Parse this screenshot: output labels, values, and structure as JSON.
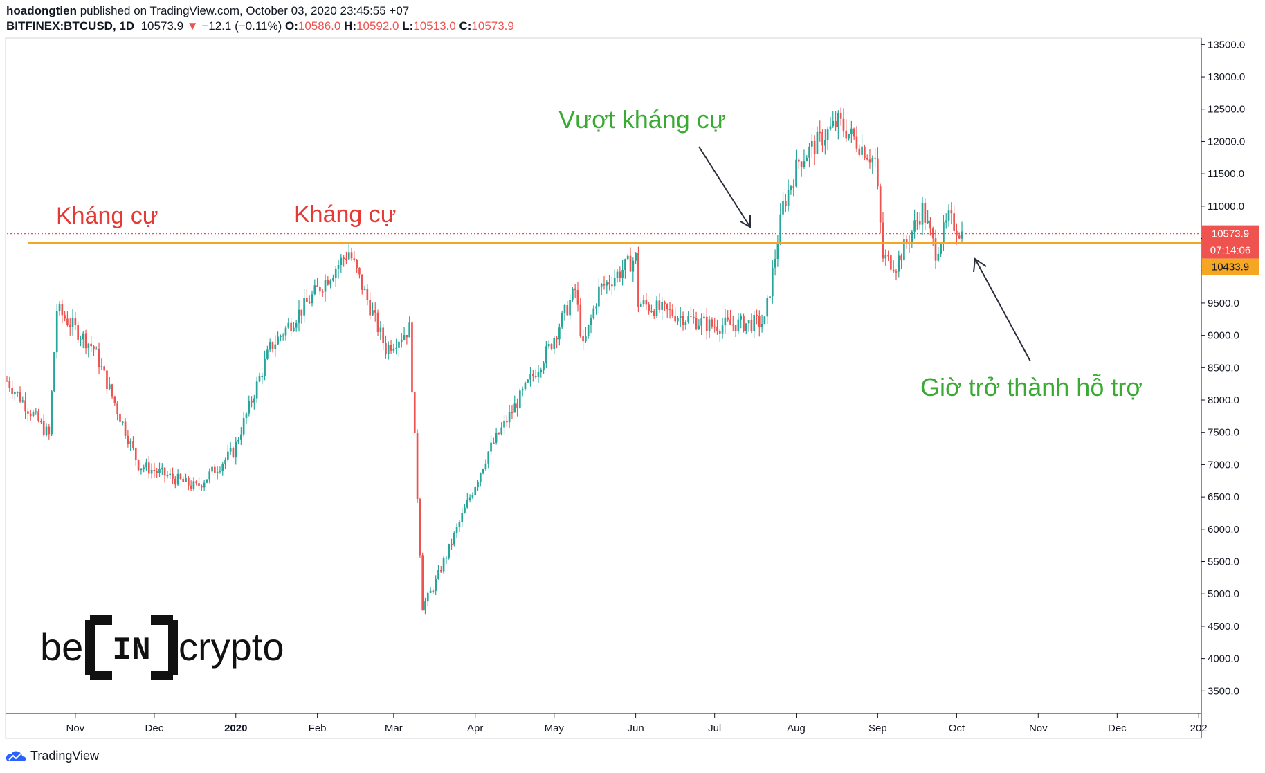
{
  "header": {
    "author": "hoadongtien",
    "published_text": " published on TradingView.com, October 03, 2020 23:45:55 +07",
    "symbol": "BITFINEX:BTCUSD, 1D",
    "last": "10573.9",
    "change": "−12.1 (−0.11%)",
    "o_label": "O:",
    "o_value": "10586.0",
    "h_label": "H:",
    "h_value": "10592.0",
    "l_label": "L:",
    "l_value": "10513.0",
    "c_label": "C:",
    "c_value": "10573.9"
  },
  "footer": {
    "brand": "TradingView"
  },
  "watermark": {
    "left": "be",
    "mid": "IN",
    "right": "crypto"
  },
  "colors": {
    "up": "#26a69a",
    "down": "#ef5350",
    "resistance": "#f5a623",
    "annotation_red": "#e53935",
    "annotation_green": "#3aaa35"
  },
  "chart_data": {
    "type": "candlestick",
    "symbol": "BITFINEX:BTCUSD",
    "timeframe": "1D",
    "ylim": [
      3150,
      13600
    ],
    "y_ticks": [
      "13500.0",
      "13000.0",
      "12500.0",
      "12000.0",
      "11500.0",
      "11000.0",
      "10500.0",
      "10000.0",
      "9500.0",
      "9000.0",
      "8500.0",
      "8000.0",
      "7500.0",
      "7000.0",
      "6500.0",
      "6000.0",
      "5500.0",
      "5000.0",
      "4500.0",
      "4000.0",
      "3500.0"
    ],
    "x_ticks": [
      "Nov",
      "Dec",
      "2020",
      "Feb",
      "Mar",
      "Apr",
      "May",
      "Jun",
      "Jul",
      "Aug",
      "Sep",
      "Oct",
      "Nov",
      "Dec",
      "202"
    ],
    "x_range": [
      "2019-10-06",
      "2021-01-02"
    ],
    "price_labels": {
      "last": "10573.9",
      "countdown": "07:14:06",
      "level": "10433.9"
    },
    "resistance_level": 10433.9,
    "annotations": [
      {
        "text": "Kháng cự",
        "color": "red"
      },
      {
        "text": "Kháng cự",
        "color": "red"
      },
      {
        "text": "Vượt kháng cự",
        "color": "green"
      },
      {
        "text": "Giờ trở thành hỗ trợ",
        "color": "green"
      }
    ],
    "anchors": [
      [
        "2019-10-06",
        8300
      ],
      [
        "2019-10-22",
        7450
      ],
      [
        "2019-10-25",
        9400
      ],
      [
        "2019-11-08",
        8800
      ],
      [
        "2019-11-25",
        7000
      ],
      [
        "2019-12-17",
        6650
      ],
      [
        "2019-12-31",
        7200
      ],
      [
        "2020-01-14",
        8800
      ],
      [
        "2020-02-13",
        10300
      ],
      [
        "2020-02-27",
        8800
      ],
      [
        "2020-03-07",
        9100
      ],
      [
        "2020-03-12",
        4800
      ],
      [
        "2020-03-16",
        5100
      ],
      [
        "2020-04-06",
        7200
      ],
      [
        "2020-04-29",
        8800
      ],
      [
        "2020-05-09",
        9700
      ],
      [
        "2020-05-12",
        8800
      ],
      [
        "2020-05-18",
        9700
      ],
      [
        "2020-06-01",
        10200
      ],
      [
        "2020-06-02",
        9500
      ],
      [
        "2020-06-30",
        9150
      ],
      [
        "2020-07-20",
        9200
      ],
      [
        "2020-07-27",
        11000
      ],
      [
        "2020-08-02",
        11700
      ],
      [
        "2020-08-17",
        12300
      ],
      [
        "2020-08-31",
        11700
      ],
      [
        "2020-09-03",
        10200
      ],
      [
        "2020-09-08",
        10100
      ],
      [
        "2020-09-18",
        10950
      ],
      [
        "2020-09-23",
        10300
      ],
      [
        "2020-09-28",
        10800
      ],
      [
        "2020-10-03",
        10573.9
      ]
    ]
  }
}
